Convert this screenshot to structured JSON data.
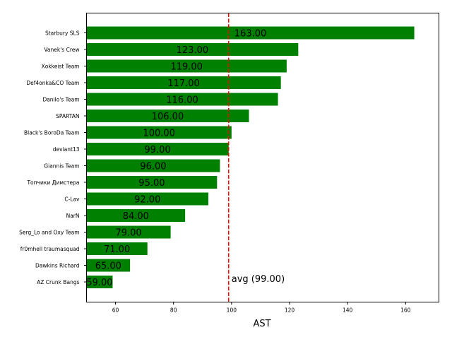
{
  "chart_data": {
    "type": "bar",
    "orientation": "horizontal",
    "categories": [
      "Starbury SLS",
      "Vanek's Crew",
      "Xokkeist Team",
      "Def4onka&CO Team",
      "Danilo's Team",
      "SPARTAN",
      "Black's BoroDa Team",
      "deviant13",
      "Giannis Team",
      "Топчики Димстера",
      "C-Lav",
      "NarN",
      "Serg_Lo and Oxy Team",
      "fr0mhell traumasquad",
      "Dawkins Richard",
      "AZ Crunk Bangs"
    ],
    "values": [
      163,
      123,
      119,
      117,
      116,
      106,
      100,
      99,
      96,
      95,
      92,
      84,
      79,
      71,
      65,
      59
    ],
    "value_labels": [
      "163.00",
      "123.00",
      "119.00",
      "117.00",
      "116.00",
      "106.00",
      "100.00",
      "99.00",
      "96.00",
      "95.00",
      "92.00",
      "84.00",
      "79.00",
      "71.00",
      "65.00",
      "59.00"
    ],
    "xlabel": "AST",
    "ylabel": "",
    "title": "",
    "xlim": [
      50,
      171.5
    ],
    "xticks": [
      60,
      80,
      100,
      120,
      140,
      160
    ],
    "xtick_labels": [
      "60",
      "80",
      "100",
      "120",
      "140",
      "160"
    ],
    "reference_line": {
      "value": 99,
      "label": "avg (99.00)",
      "style": "dashed"
    },
    "colors": {
      "bar": "#008000",
      "reference_line": "#ff0000"
    },
    "grid": false,
    "legend": "none"
  }
}
